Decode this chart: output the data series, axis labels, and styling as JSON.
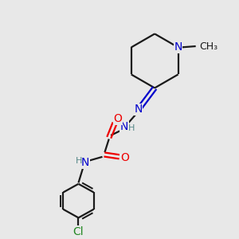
{
  "bg_color": "#e8e8e8",
  "bond_color": "#1a1a1a",
  "n_color": "#0000cc",
  "o_color": "#ee0000",
  "cl_color": "#228822",
  "h_color": "#558888",
  "line_width": 1.6,
  "font_size": 10,
  "fig_size": [
    3.0,
    3.0
  ],
  "dpi": 100,
  "xlim": [
    0,
    10
  ],
  "ylim": [
    0,
    10
  ]
}
